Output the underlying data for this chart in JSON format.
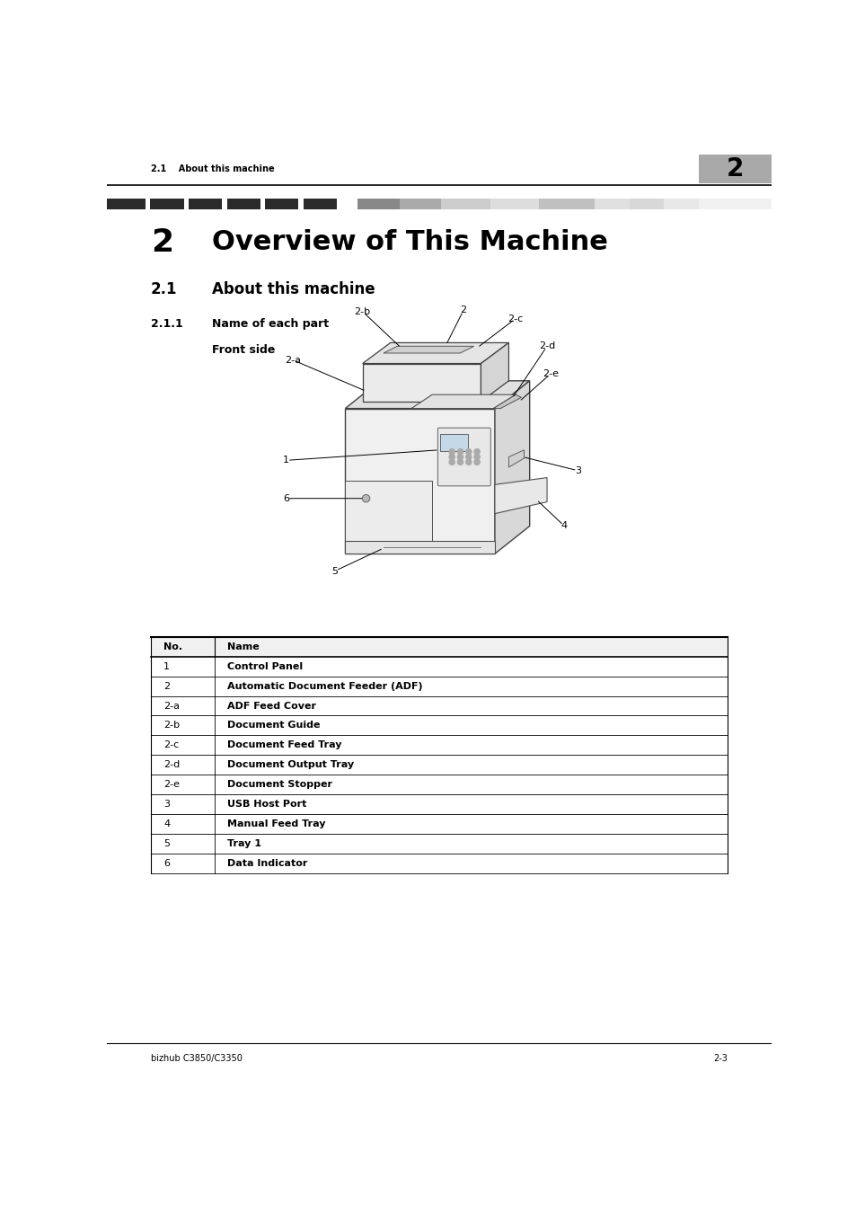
{
  "page_width": 9.54,
  "page_height": 13.5,
  "bg_color": "#ffffff",
  "header_text_left": "2.1    About this machine",
  "header_num": "2",
  "chapter_num": "2",
  "chapter_title": "Overview of This Machine",
  "section_num": "2.1",
  "section_title": "About this machine",
  "subsection_num": "2.1.1",
  "subsection_title": "Name of each part",
  "sub_sub_title": "Front side",
  "table_headers": [
    "No.",
    "Name"
  ],
  "table_rows": [
    [
      "1",
      "Control Panel"
    ],
    [
      "2",
      "Automatic Document Feeder (ADF)"
    ],
    [
      "2-a",
      "ADF Feed Cover"
    ],
    [
      "2-b",
      "Document Guide"
    ],
    [
      "2-c",
      "Document Feed Tray"
    ],
    [
      "2-d",
      "Document Output Tray"
    ],
    [
      "2-e",
      "Document Stopper"
    ],
    [
      "3",
      "USB Host Port"
    ],
    [
      "4",
      "Manual Feed Tray"
    ],
    [
      "5",
      "Tray 1"
    ],
    [
      "6",
      "Data Indicator"
    ]
  ],
  "footer_left": "bizhub C3850/C3350",
  "footer_right": "2-3"
}
